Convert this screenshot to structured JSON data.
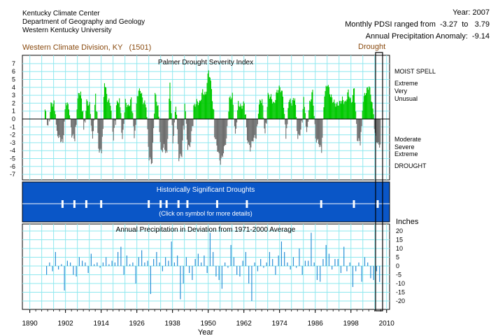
{
  "header": {
    "org_lines": [
      "Kentucky Climate Center",
      "Department of Geography and Geology",
      "Western Kentucky University"
    ],
    "year_label": "Year:",
    "year_value": "2007",
    "pdsi_range_label": "Monthly PDSI ranged from",
    "pdsi_min": "-3.27",
    "pdsi_to": "to",
    "pdsi_max": "3.79",
    "anomaly_label": "Annual Precipitation Anomaly:",
    "anomaly_value": "-9.14",
    "division": "Western Climate Division, KY",
    "division_code": "(1501)",
    "selected_status": "Drought"
  },
  "pdsi_panel": {
    "title": "Palmer Drought Severity Index",
    "y_ticks": [
      "7",
      "6",
      "5",
      "4",
      "3",
      "2",
      "1",
      "0",
      "-1",
      "-2",
      "-3",
      "-4",
      "-5",
      "-6",
      "-7"
    ],
    "right_labels": {
      "moist_spell": "MOIST SPELL",
      "extreme": "Extreme",
      "very": "Very",
      "unusual": "Unusual",
      "moderate": "Moderate",
      "severe": "Severe",
      "extreme_dry": "Extreme",
      "drought": "DROUGHT"
    },
    "colors": {
      "positive": "#00c800",
      "negative": "#6e6e6e",
      "grid": "#8fe8ef"
    }
  },
  "droughts_panel": {
    "title": "Historically Significant Droughts",
    "subtitle": "(Click on symbol for more details)",
    "bg_color": "#0a56c7",
    "marker_years": [
      1901,
      1905,
      1909,
      1914,
      1930,
      1934,
      1936,
      1940,
      1943,
      1953,
      1963,
      1988,
      1999,
      2007
    ]
  },
  "precip_panel": {
    "title": "Annual Precipitation in Deviation from 1971-2000 Average",
    "units_label": "Inches",
    "y_ticks": [
      "20",
      "15",
      "10",
      "5",
      "0",
      "-5",
      "-10",
      "-15",
      "-20"
    ],
    "bar_color": "#2a8fd6"
  },
  "x_axis": {
    "label": "Year",
    "ticks": [
      "1890",
      "1902",
      "1914",
      "1926",
      "1938",
      "1950",
      "1962",
      "1974",
      "1986",
      "1998",
      "2010"
    ]
  },
  "chart_data": [
    {
      "type": "bar",
      "title": "Palmer Drought Severity Index",
      "xlabel": "",
      "ylabel": "",
      "x_range": [
        1895,
        2008
      ],
      "ylim": [
        -7.5,
        7.5
      ],
      "grid": true,
      "resolution": "monthly (shown as 1/4-year samples)",
      "x": [
        1895,
        1896,
        1897,
        1898,
        1899,
        1900,
        1901,
        1902,
        1903,
        1904,
        1905,
        1906,
        1907,
        1908,
        1909,
        1910,
        1911,
        1912,
        1913,
        1914,
        1915,
        1916,
        1917,
        1918,
        1919,
        1920,
        1921,
        1922,
        1923,
        1924,
        1925,
        1926,
        1927,
        1928,
        1929,
        1930,
        1931,
        1932,
        1933,
        1934,
        1935,
        1936,
        1937,
        1938,
        1939,
        1940,
        1941,
        1942,
        1943,
        1944,
        1945,
        1946,
        1947,
        1948,
        1949,
        1950,
        1951,
        1952,
        1953,
        1954,
        1955,
        1956,
        1957,
        1958,
        1959,
        1960,
        1961,
        1962,
        1963,
        1964,
        1965,
        1966,
        1967,
        1968,
        1969,
        1970,
        1971,
        1972,
        1973,
        1974,
        1975,
        1976,
        1977,
        1978,
        1979,
        1980,
        1981,
        1982,
        1983,
        1984,
        1985,
        1986,
        1987,
        1988,
        1989,
        1990,
        1991,
        1992,
        1993,
        1994,
        1995,
        1996,
        1997,
        1998,
        1999,
        2000,
        2001,
        2002,
        2003,
        2004,
        2005,
        2006,
        2007
      ],
      "values": [
        1.2,
        -1.0,
        1.8,
        2.0,
        -1.8,
        -2.5,
        -3.0,
        2.2,
        1.5,
        -2.0,
        -2.5,
        2.8,
        3.5,
        -1.5,
        2.2,
        1.8,
        -2.8,
        3.0,
        -3.8,
        -4.2,
        4.8,
        2.5,
        2.0,
        -2.5,
        1.8,
        2.5,
        -2.8,
        2.2,
        1.5,
        2.5,
        -2.5,
        3.0,
        3.8,
        2.2,
        1.8,
        -5.0,
        -5.5,
        3.2,
        1.5,
        -4.2,
        -3.5,
        -4.5,
        4.5,
        -3.0,
        1.8,
        -5.0,
        -4.5,
        2.2,
        -3.8,
        -3.0,
        1.5,
        2.2,
        2.0,
        3.5,
        3.0,
        6.2,
        4.0,
        -2.0,
        -3.8,
        -5.5,
        -4.2,
        -2.5,
        2.5,
        3.0,
        -2.2,
        2.0,
        1.5,
        2.0,
        -2.5,
        -3.8,
        -2.5,
        -2.2,
        2.0,
        2.5,
        -2.0,
        3.0,
        2.8,
        1.8,
        3.5,
        4.0,
        3.0,
        -2.2,
        2.5,
        2.0,
        2.8,
        -2.5,
        -1.5,
        2.5,
        -2.0,
        2.0,
        3.5,
        -2.5,
        -3.0,
        -4.0,
        3.2,
        4.5,
        3.0,
        2.2,
        1.8,
        2.0,
        2.5,
        2.0,
        3.5,
        2.0,
        4.0,
        -2.5,
        -3.0,
        2.5,
        3.5,
        4.2,
        2.0,
        -2.0,
        -3.27
      ]
    },
    {
      "type": "bar",
      "title": "Annual Precipitation in Deviation from 1971-2000 Average",
      "xlabel": "Year",
      "ylabel": "Inches",
      "ylim": [
        -20,
        20
      ],
      "grid": true,
      "x": [
        1895,
        1896,
        1897,
        1898,
        1899,
        1900,
        1901,
        1902,
        1903,
        1904,
        1905,
        1906,
        1907,
        1908,
        1909,
        1910,
        1911,
        1912,
        1913,
        1914,
        1915,
        1916,
        1917,
        1918,
        1919,
        1920,
        1921,
        1922,
        1923,
        1924,
        1925,
        1926,
        1927,
        1928,
        1929,
        1930,
        1931,
        1932,
        1933,
        1934,
        1935,
        1936,
        1937,
        1938,
        1939,
        1940,
        1941,
        1942,
        1943,
        1944,
        1945,
        1946,
        1947,
        1948,
        1949,
        1950,
        1951,
        1952,
        1953,
        1954,
        1955,
        1956,
        1957,
        1958,
        1959,
        1960,
        1961,
        1962,
        1963,
        1964,
        1965,
        1966,
        1967,
        1968,
        1969,
        1970,
        1971,
        1972,
        1973,
        1974,
        1975,
        1976,
        1977,
        1978,
        1979,
        1980,
        1981,
        1982,
        1983,
        1984,
        1985,
        1986,
        1987,
        1988,
        1989,
        1990,
        1991,
        1992,
        1993,
        1994,
        1995,
        1996,
        1997,
        1998,
        1999,
        2000,
        2001,
        2002,
        2003,
        2004,
        2005,
        2006,
        2007
      ],
      "values": [
        -5,
        2,
        -3,
        8,
        -2,
        1,
        -14,
        3,
        2,
        -5,
        -6,
        5,
        3,
        2,
        -4,
        7,
        1,
        2,
        -1,
        2,
        5,
        1,
        3,
        2,
        8,
        11,
        -5,
        6,
        1,
        2,
        -10,
        5,
        9,
        2,
        3,
        -16,
        4,
        8,
        2,
        -3,
        5,
        3,
        14,
        2,
        6,
        -19,
        -10,
        5,
        -4,
        -8,
        4,
        7,
        2,
        6,
        -4,
        19,
        8,
        -6,
        -8,
        -13,
        2,
        -1,
        12,
        5,
        -5,
        -6,
        3,
        8,
        -10,
        -20,
        2,
        -3,
        4,
        -1,
        2,
        8,
        4,
        -5,
        6,
        14,
        8,
        2,
        -2,
        5,
        -1,
        10,
        -5,
        3,
        3,
        19,
        2,
        -8,
        -9,
        4,
        12,
        7,
        -2,
        4,
        4,
        -4,
        11,
        -3,
        2,
        -12,
        -3,
        2,
        -9,
        5,
        2,
        -7,
        -8,
        -3,
        -9.14
      ]
    }
  ]
}
